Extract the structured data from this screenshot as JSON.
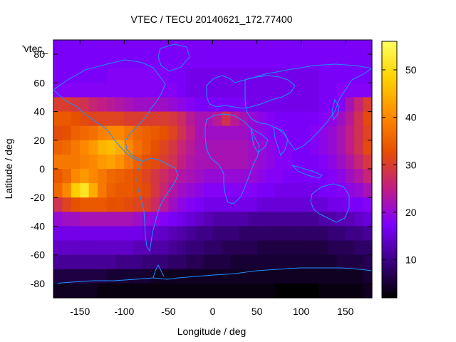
{
  "chart_data": {
    "type": "heatmap",
    "title": "VTEC / TECU 20140621_172.77400",
    "xlabel": "Longitude / deg",
    "ylabel": "Latitude / deg",
    "legend_label": "'vtec_",
    "xlim": [
      -180,
      180
    ],
    "ylim": [
      -90,
      90
    ],
    "x_ticks": [
      -150,
      -100,
      -50,
      0,
      50,
      100,
      150
    ],
    "y_ticks": [
      -80,
      -60,
      -40,
      -20,
      0,
      20,
      40,
      60,
      80
    ],
    "colorbar": {
      "range": [
        2,
        56
      ],
      "ticks": [
        10,
        20,
        30,
        40,
        50
      ]
    },
    "palette": [
      "#000000",
      "#3c0082",
      "#7f00ff",
      "#c21e82",
      "#e65000",
      "#ff8c00",
      "#ffd200",
      "#ffff60"
    ],
    "coastline_color": "#1e90ff",
    "lat_rows": [
      85,
      75,
      65,
      55,
      45,
      35,
      25,
      15,
      5,
      -5,
      -15,
      -25,
      -35,
      -45,
      -55,
      -65,
      -75,
      -85
    ],
    "lon_cols": [
      -175,
      -165,
      -155,
      -145,
      -135,
      -125,
      -115,
      -105,
      -95,
      -85,
      -75,
      -65,
      -55,
      -45,
      -35,
      -25,
      -15,
      -5,
      5,
      15,
      25,
      35,
      45,
      55,
      65,
      75,
      85,
      95,
      105,
      115,
      125,
      135,
      145,
      155,
      165,
      175
    ],
    "values": [
      [
        17,
        17,
        17,
        17,
        17,
        17,
        17,
        17,
        17,
        17,
        17,
        17,
        17,
        17,
        17,
        17,
        17,
        17,
        17,
        17,
        17,
        17,
        17,
        17,
        17,
        17,
        17,
        17,
        17,
        17,
        17,
        17,
        17,
        17,
        17,
        17
      ],
      [
        17,
        17,
        17,
        17,
        17,
        17,
        17,
        17,
        17,
        17,
        17,
        17,
        17,
        17,
        17,
        17,
        17,
        17,
        17,
        17,
        17,
        17,
        17,
        17,
        17,
        17,
        17,
        17,
        17,
        17,
        17,
        17,
        17,
        17,
        17,
        17
      ],
      [
        17,
        17,
        17,
        17,
        17,
        17,
        18,
        18,
        18,
        18,
        18,
        18,
        18,
        17,
        17,
        16,
        16,
        16,
        16,
        16,
        16,
        16,
        16,
        16,
        16,
        16,
        16,
        16,
        16,
        16,
        17,
        17,
        17,
        17,
        17,
        17
      ],
      [
        18,
        18,
        18,
        18,
        18,
        18,
        18,
        18,
        18,
        18,
        18,
        18,
        18,
        18,
        17,
        16,
        16,
        16,
        16,
        16,
        16,
        16,
        16,
        16,
        16,
        16,
        16,
        16,
        16,
        16,
        17,
        17,
        18,
        18,
        18,
        18
      ],
      [
        30,
        30,
        29,
        28,
        26,
        25,
        24,
        23,
        22,
        21,
        21,
        21,
        21,
        20,
        19,
        18,
        17,
        17,
        17,
        17,
        17,
        17,
        16,
        16,
        16,
        16,
        16,
        16,
        16,
        16,
        17,
        17,
        18,
        22,
        26,
        30
      ],
      [
        34,
        34,
        33,
        32,
        31,
        31,
        31,
        31,
        30,
        30,
        30,
        30,
        30,
        29,
        27,
        24,
        22,
        22,
        24,
        28,
        24,
        22,
        20,
        19,
        18,
        17,
        17,
        17,
        17,
        17,
        18,
        19,
        21,
        24,
        28,
        32
      ],
      [
        32,
        33,
        35,
        36,
        37,
        39,
        40,
        40,
        38,
        36,
        35,
        34,
        33,
        31,
        28,
        25,
        22,
        21,
        21,
        21,
        21,
        21,
        20,
        19,
        18,
        18,
        17,
        17,
        17,
        18,
        19,
        20,
        22,
        25,
        28,
        31
      ],
      [
        35,
        36,
        38,
        40,
        42,
        45,
        46,
        44,
        40,
        37,
        35,
        33,
        31,
        29,
        26,
        24,
        22,
        22,
        22,
        22,
        22,
        22,
        21,
        20,
        19,
        18,
        18,
        17,
        17,
        18,
        19,
        20,
        22,
        25,
        28,
        32
      ],
      [
        38,
        38,
        38,
        39,
        40,
        42,
        43,
        41,
        38,
        35,
        33,
        32,
        30,
        28,
        25,
        23,
        22,
        22,
        22,
        22,
        22,
        22,
        21,
        20,
        19,
        18,
        18,
        17,
        17,
        17,
        18,
        19,
        21,
        23,
        26,
        29
      ],
      [
        34,
        36,
        40,
        42,
        40,
        38,
        36,
        35,
        34,
        33,
        31,
        29,
        27,
        25,
        23,
        22,
        21,
        20,
        20,
        20,
        20,
        20,
        20,
        19,
        18,
        18,
        17,
        17,
        17,
        17,
        17,
        18,
        19,
        21,
        23,
        26
      ],
      [
        36,
        40,
        48,
        51,
        44,
        38,
        35,
        34,
        34,
        33,
        32,
        29,
        26,
        23,
        21,
        20,
        19,
        18,
        18,
        18,
        18,
        18,
        18,
        17,
        17,
        16,
        16,
        16,
        16,
        16,
        17,
        17,
        18,
        19,
        20,
        22
      ],
      [
        28,
        31,
        33,
        34,
        34,
        34,
        33,
        33,
        32,
        31,
        30,
        27,
        24,
        21,
        19,
        18,
        17,
        16,
        16,
        16,
        16,
        16,
        16,
        15,
        15,
        15,
        15,
        15,
        15,
        15,
        15,
        16,
        16,
        17,
        17,
        18
      ],
      [
        20,
        21,
        21,
        22,
        22,
        22,
        22,
        22,
        22,
        21,
        20,
        19,
        18,
        17,
        16,
        15,
        14,
        13,
        12,
        12,
        12,
        12,
        11,
        11,
        11,
        11,
        11,
        11,
        11,
        11,
        12,
        12,
        13,
        13,
        14,
        15
      ],
      [
        16,
        16,
        16,
        16,
        16,
        16,
        16,
        16,
        16,
        16,
        15,
        14,
        14,
        13,
        12,
        11,
        10,
        10,
        9,
        9,
        9,
        8,
        8,
        8,
        8,
        8,
        8,
        8,
        8,
        8,
        8,
        9,
        9,
        10,
        10,
        11
      ],
      [
        14,
        14,
        14,
        14,
        14,
        14,
        14,
        14,
        14,
        13,
        13,
        12,
        12,
        11,
        10,
        9,
        9,
        8,
        8,
        7,
        7,
        7,
        7,
        6,
        6,
        6,
        6,
        6,
        6,
        6,
        6,
        7,
        7,
        7,
        8,
        8
      ],
      [
        11,
        11,
        11,
        11,
        11,
        11,
        11,
        10,
        10,
        10,
        9,
        9,
        9,
        8,
        8,
        7,
        7,
        6,
        6,
        6,
        5,
        5,
        5,
        5,
        5,
        5,
        5,
        5,
        5,
        5,
        5,
        5,
        6,
        6,
        6,
        7
      ],
      [
        6,
        6,
        6,
        6,
        6,
        6,
        5,
        5,
        5,
        5,
        5,
        4,
        4,
        4,
        4,
        4,
        4,
        4,
        4,
        4,
        4,
        4,
        4,
        4,
        4,
        4,
        4,
        4,
        4,
        4,
        4,
        4,
        4,
        4,
        4,
        5
      ],
      [
        4,
        4,
        4,
        4,
        4,
        3,
        3,
        3,
        3,
        3,
        3,
        3,
        3,
        3,
        3,
        3,
        3,
        3,
        3,
        3,
        3,
        3,
        3,
        3,
        3,
        2,
        2,
        2,
        2,
        2,
        3,
        3,
        3,
        3,
        3,
        4
      ]
    ]
  }
}
